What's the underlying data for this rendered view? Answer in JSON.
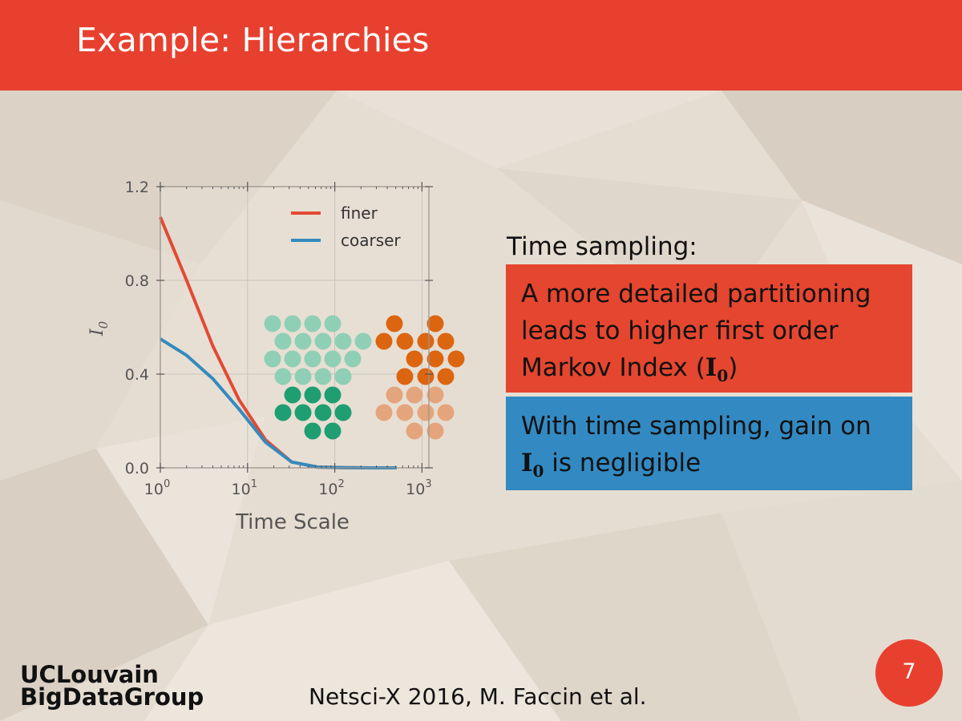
{
  "header": {
    "title": "Example: Hierarchies"
  },
  "chart_data": {
    "type": "line",
    "xscale": "log",
    "xlabel": "Time Scale",
    "ylabel": "I",
    "ylabel_subscript": "0",
    "xlim": [
      1,
      1200
    ],
    "ylim": [
      0,
      1.2
    ],
    "yticks": [
      "0.0",
      "0.4",
      "0.8",
      "1.2"
    ],
    "xticks": [
      {
        "base": "10",
        "exp": "0",
        "value": 1
      },
      {
        "base": "10",
        "exp": "1",
        "value": 10
      },
      {
        "base": "10",
        "exp": "2",
        "value": 100
      },
      {
        "base": "10",
        "exp": "3",
        "value": 1000
      }
    ],
    "grid": true,
    "legend_position": "top-right",
    "series": [
      {
        "name": "finer",
        "color": "#e24a33",
        "x": [
          1,
          2,
          4,
          8,
          16,
          32,
          64,
          128,
          256,
          512
        ],
        "y": [
          1.07,
          0.8,
          0.52,
          0.29,
          0.12,
          0.025,
          0.003,
          0.001,
          0.0,
          0.0
        ]
      },
      {
        "name": "coarser",
        "color": "#348abd",
        "x": [
          1,
          2,
          4,
          8,
          16,
          32,
          64,
          128,
          256,
          512
        ],
        "y": [
          0.55,
          0.48,
          0.38,
          0.25,
          0.11,
          0.025,
          0.003,
          0.001,
          0.0,
          0.0
        ]
      }
    ]
  },
  "illustration": {
    "colors": {
      "light_green": "#8fcfb5",
      "dark_green": "#1f9e72",
      "dark_orange": "#dc6510",
      "light_orange": "#e5a57c"
    }
  },
  "content": {
    "subhead": "Time sampling:",
    "red_box": {
      "line1": "A more detailed partitioning",
      "line2": "leads to higher first order",
      "line3_pre": "Markov Index (",
      "line3_post": ")"
    },
    "blue_box": {
      "line1": "With time sampling, gain on",
      "line2_post": " is negligible"
    },
    "i0_symbol": "I",
    "i0_sub": "0"
  },
  "footer": {
    "logo_line1": "UCLouvain",
    "logo_line2": "BigDataGroup",
    "citation": "Netsci-X 2016, M. Faccin et al.",
    "page_number": "7"
  },
  "colors": {
    "header": "#e8402f",
    "red_box": "#e5462f",
    "blue_box": "#338ac3",
    "background": "#e6ddd2"
  }
}
